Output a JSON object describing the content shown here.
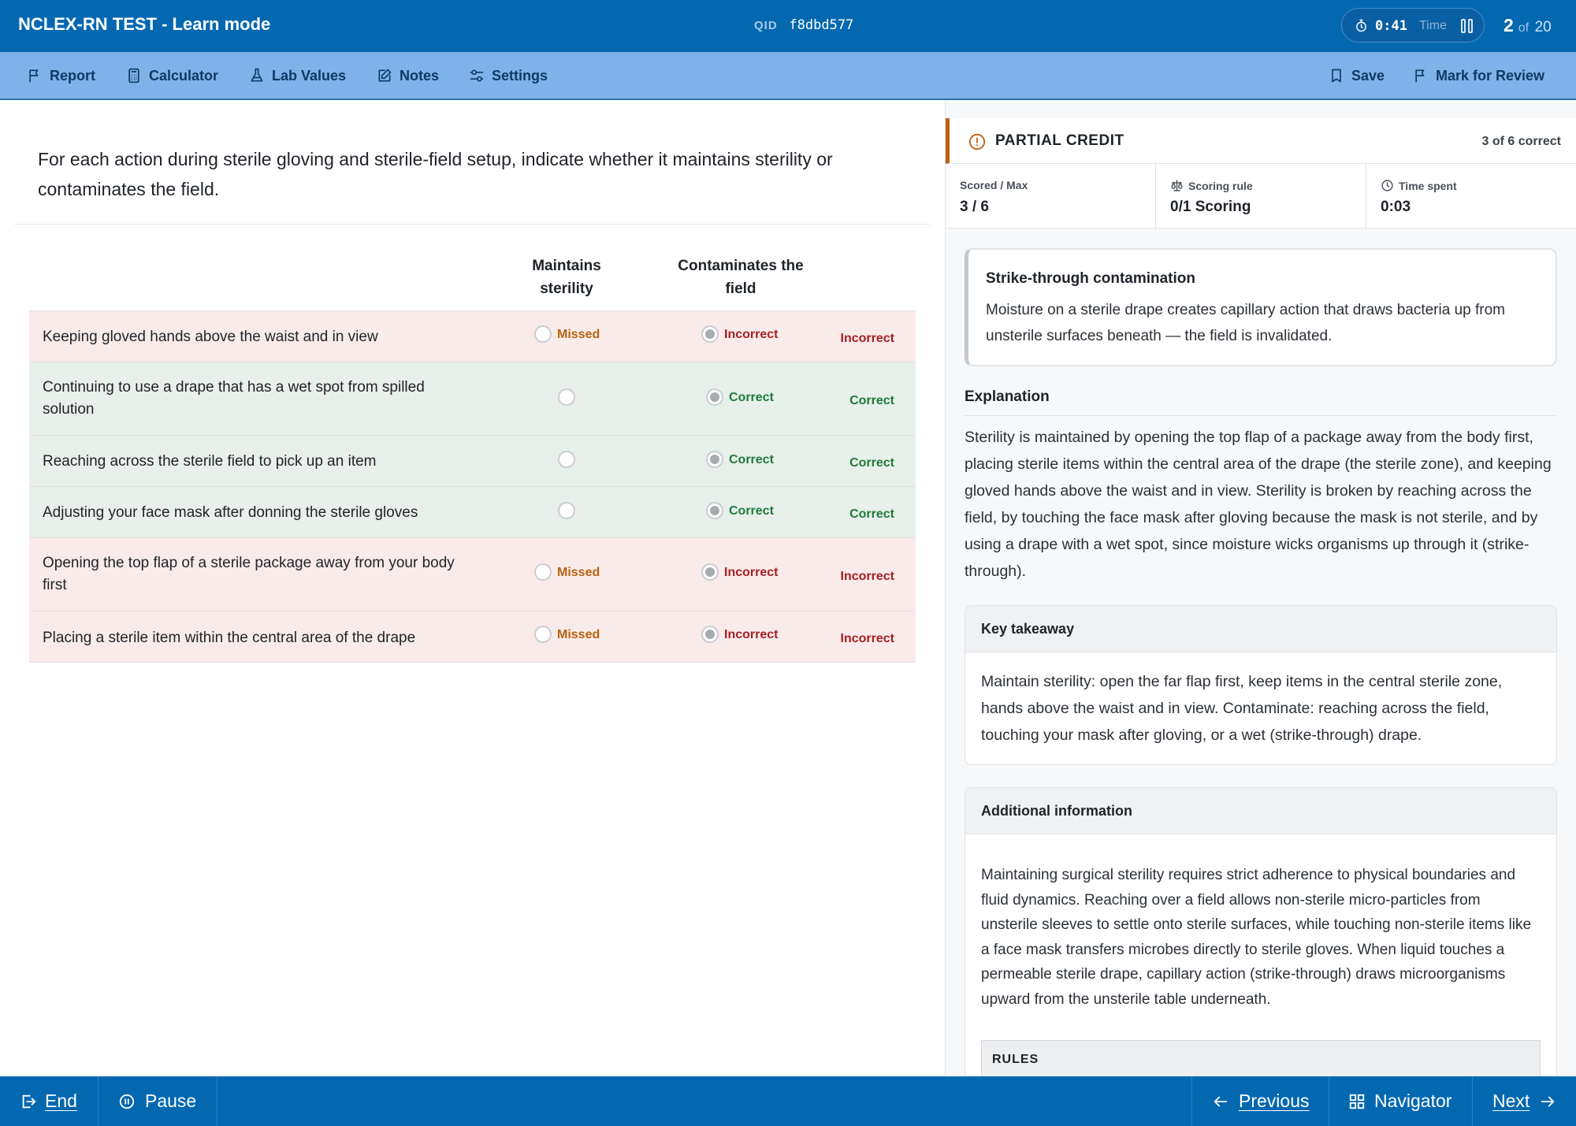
{
  "header": {
    "title": "NCLEX-RN TEST - Learn mode",
    "qid_label": "QID",
    "qid_value": "f8dbd577",
    "timer_value": "0:41",
    "timer_label": "Time",
    "question_current": "2",
    "question_of": "of",
    "question_total": "20"
  },
  "toolbar": {
    "report": "Report",
    "calculator": "Calculator",
    "lab_values": "Lab Values",
    "notes": "Notes",
    "settings": "Settings",
    "save": "Save",
    "mark_for_review": "Mark for Review"
  },
  "question": {
    "stem": "For each action during sterile gloving and sterile-field setup, indicate whether it maintains sterility or contaminates the field.",
    "columns": [
      "Maintains sterility",
      "Contaminates the field"
    ],
    "rows": [
      {
        "statement": "Keeping gloved hands above the waist and in view",
        "col1_tag": "Missed",
        "col2_tag": "Incorrect",
        "verdict": "Incorrect"
      },
      {
        "statement": "Continuing to use a drape that has a wet spot from spilled solution",
        "col1_tag": "",
        "col2_tag": "Correct",
        "verdict": "Correct"
      },
      {
        "statement": "Reaching across the sterile field to pick up an item",
        "col1_tag": "",
        "col2_tag": "Correct",
        "verdict": "Correct"
      },
      {
        "statement": "Adjusting your face mask after donning the sterile gloves",
        "col1_tag": "",
        "col2_tag": "Correct",
        "verdict": "Correct"
      },
      {
        "statement": "Opening the top flap of a sterile package away from your body first",
        "col1_tag": "Missed",
        "col2_tag": "Incorrect",
        "verdict": "Incorrect"
      },
      {
        "statement": "Placing a sterile item within the central area of the drape",
        "col1_tag": "Missed",
        "col2_tag": "Incorrect",
        "verdict": "Incorrect"
      }
    ]
  },
  "result": {
    "status": "PARTIAL CREDIT",
    "correct_count": "3 of 6 correct",
    "scored_label": "Scored / Max",
    "scored_value": "3 / 6",
    "rule_label": "Scoring rule",
    "rule_value": "0/1 Scoring",
    "time_label": "Time spent",
    "time_value": "0:03",
    "accent_color": "#c0600f"
  },
  "callout": {
    "title": "Strike-through contamination",
    "body": "Moisture on a sterile drape creates capillary action that draws bacteria up from unsterile surfaces beneath — the field is invalidated."
  },
  "explanation": {
    "heading": "Explanation",
    "body": "Sterility is maintained by opening the top flap of a package away from the body first, placing sterile items within the central area of the drape (the sterile zone), and keeping gloved hands above the waist and in view. Sterility is broken by reaching across the field, by touching the face mask after gloving because the mask is not sterile, and by using a drape with a wet spot, since moisture wicks organisms up through it (strike-through)."
  },
  "key_takeaway": {
    "heading": "Key takeaway",
    "body": "Maintain sterility: open the far flap first, keep items in the central sterile zone, hands above the waist and in view. Contaminate: reaching across the field, touching your mask after gloving, or a wet (strike-through) drape."
  },
  "additional_info": {
    "heading": "Additional information",
    "body": "Maintaining surgical sterility requires strict adherence to physical boundaries and fluid dynamics. Reaching over a field allows non-sterile micro-particles from unsterile sleeves to settle onto sterile surfaces, while touching non-sterile items like a face mask transfers microbes directly to sterile gloves. When liquid touches a permeable sterile drape, capillary action (strike-through) draws microorganisms upward from the unsterile table underneath.",
    "rules_heading": "RULES"
  },
  "footer": {
    "end": "End",
    "pause": "Pause",
    "previous": "Previous",
    "navigator": "Navigator",
    "next": "Next"
  }
}
